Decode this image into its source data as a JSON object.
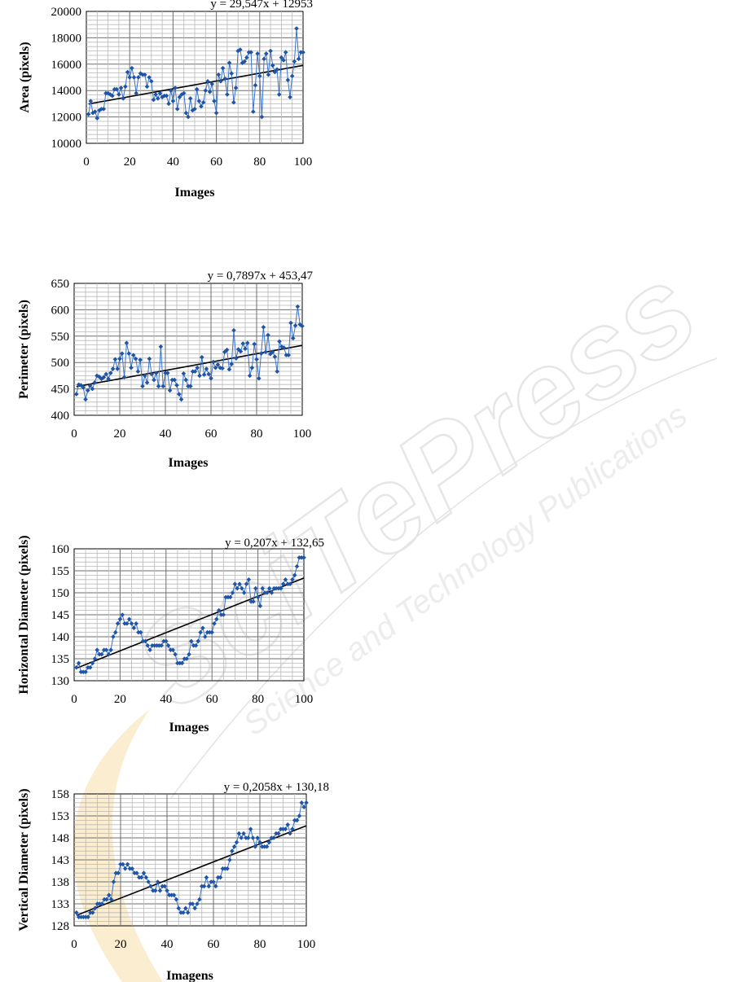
{
  "watermark": {
    "text": "SciTePress",
    "subtext": "Science and Technology Publications"
  },
  "chart_data": [
    {
      "type": "scatter",
      "xlabel": "Images",
      "ylabel": "Area (pixels)",
      "equation": "y = 29,547x + 12953",
      "xlim": [
        0,
        100
      ],
      "ylim": [
        10000,
        20000
      ],
      "xticks": [
        "0",
        "20",
        "40",
        "60",
        "80",
        "100"
      ],
      "yticks": [
        "10000",
        "12000",
        "14000",
        "16000",
        "18000",
        "20000"
      ],
      "trend": {
        "slope": 29.547,
        "intercept": 12953
      },
      "grid": true,
      "series": [
        {
          "values": [
            12200,
            13200,
            12300,
            12400,
            11900,
            12500,
            12600,
            12600,
            13800,
            13800,
            13700,
            13600,
            14100,
            14100,
            13700,
            14200,
            13400,
            14300,
            15400,
            15000,
            15700,
            15000,
            13800,
            15000,
            15300,
            15200,
            15200,
            14300,
            15000,
            14700,
            13300,
            13700,
            13400,
            13800,
            13500,
            13600,
            13600,
            13000,
            14000,
            13200,
            14200,
            12600,
            13500,
            13700,
            13800,
            12300,
            12000,
            13400,
            12500,
            12600,
            14100,
            13200,
            12800,
            13100,
            14000,
            14700,
            13900,
            14500,
            13200,
            12300,
            15200,
            14700,
            15700,
            14900,
            13700,
            16100,
            15300,
            13100,
            14200,
            17000,
            17100,
            16100,
            16200,
            16500,
            16900,
            16900,
            12400,
            14400,
            16800,
            15100,
            12000,
            16400,
            16800,
            15200,
            17000,
            15900,
            15400,
            15600,
            13700,
            16500,
            16300,
            16900,
            14800,
            13500,
            15100,
            16200,
            18700,
            16400,
            16900,
            16900
          ]
        }
      ]
    },
    {
      "type": "scatter",
      "xlabel": "Images",
      "ylabel": "Perimeter (pixels)",
      "equation": "y = 0,7897x + 453,47",
      "xlim": [
        0,
        100
      ],
      "ylim": [
        400,
        650
      ],
      "xticks": [
        "0",
        "20",
        "40",
        "60",
        "80",
        "100"
      ],
      "yticks": [
        "400",
        "450",
        "500",
        "550",
        "600",
        "650"
      ],
      "trend": {
        "slope": 0.7897,
        "intercept": 453.47
      },
      "grid": true,
      "series": [
        {
          "values": [
            440,
            458,
            457,
            453,
            430,
            447,
            456,
            450,
            462,
            475,
            473,
            469,
            472,
            478,
            469,
            480,
            488,
            506,
            488,
            507,
            517,
            472,
            537,
            517,
            490,
            514,
            507,
            483,
            505,
            455,
            475,
            462,
            507,
            478,
            467,
            480,
            455,
            530,
            455,
            480,
            480,
            447,
            467,
            467,
            457,
            440,
            430,
            479,
            467,
            455,
            455,
            483,
            483,
            490,
            475,
            510,
            477,
            488,
            478,
            470,
            501,
            490,
            496,
            490,
            489,
            520,
            524,
            487,
            497,
            561,
            508,
            525,
            521,
            536,
            526,
            537,
            475,
            490,
            535,
            506,
            470,
            517,
            567,
            520,
            552,
            516,
            520,
            511,
            483,
            540,
            530,
            528,
            514,
            514,
            575,
            546,
            570,
            606,
            572,
            569
          ]
        }
      ]
    },
    {
      "type": "scatter",
      "xlabel": "Images",
      "ylabel": "Horizontal Diameter (pixels)",
      "equation": "y = 0,207x + 132,65",
      "xlim": [
        0,
        100
      ],
      "ylim": [
        130,
        160
      ],
      "xticks": [
        "0",
        "20",
        "40",
        "60",
        "80",
        "100"
      ],
      "yticks": [
        "130",
        "135",
        "140",
        "145",
        "150",
        "155",
        "160"
      ],
      "trend": {
        "slope": 0.207,
        "intercept": 132.65
      },
      "grid": true,
      "series": [
        {
          "values": [
            133,
            134,
            132,
            132,
            132,
            133,
            133,
            134,
            135,
            137,
            136,
            136,
            137,
            137,
            136,
            137,
            140,
            141,
            143,
            144,
            145,
            143,
            143,
            144,
            143,
            142,
            143,
            141,
            141,
            139,
            139,
            138,
            137,
            138,
            138,
            138,
            138,
            138,
            139,
            139,
            138,
            137,
            137,
            136,
            134,
            134,
            134,
            135,
            135,
            136,
            139,
            138,
            138,
            139,
            141,
            142,
            140,
            141,
            141,
            141,
            143,
            144,
            146,
            145,
            145,
            149,
            149,
            149,
            150,
            152,
            151,
            152,
            151,
            150,
            152,
            153,
            148,
            148,
            151,
            149,
            147,
            151,
            150,
            150,
            151,
            150,
            151,
            151,
            151,
            151,
            152,
            153,
            152,
            152,
            153,
            154,
            156,
            158,
            158,
            158
          ]
        }
      ]
    },
    {
      "type": "scatter",
      "xlabel": "Imagens",
      "ylabel": "Vertical Diameter (pixels)",
      "equation": "y = 0,2058x + 130,18",
      "xlim": [
        0,
        100
      ],
      "ylim": [
        128,
        158
      ],
      "xticks": [
        "0",
        "20",
        "40",
        "60",
        "80",
        "100"
      ],
      "yticks": [
        "128",
        "133",
        "138",
        "143",
        "148",
        "153",
        "158"
      ],
      "trend": {
        "slope": 0.2058,
        "intercept": 130.18
      },
      "grid": true,
      "series": [
        {
          "values": [
            131,
            130,
            130,
            130,
            130,
            130,
            131,
            131,
            132,
            133,
            133,
            133,
            134,
            134,
            135,
            134,
            138,
            140,
            140,
            142,
            142,
            141,
            142,
            141,
            141,
            140,
            140,
            139,
            139,
            140,
            139,
            138,
            137,
            136,
            136,
            138,
            136,
            137,
            137,
            136,
            135,
            135,
            135,
            134,
            132,
            131,
            131,
            132,
            131,
            133,
            133,
            132,
            133,
            134,
            137,
            137,
            139,
            137,
            138,
            138,
            137,
            139,
            139,
            141,
            141,
            141,
            143,
            145,
            146,
            147,
            149,
            148,
            149,
            148,
            148,
            150,
            148,
            146,
            148,
            147,
            146,
            146,
            146,
            147,
            148,
            148,
            149,
            149,
            150,
            150,
            150,
            151,
            149,
            150,
            152,
            152,
            153,
            156,
            155,
            156
          ]
        }
      ]
    }
  ]
}
